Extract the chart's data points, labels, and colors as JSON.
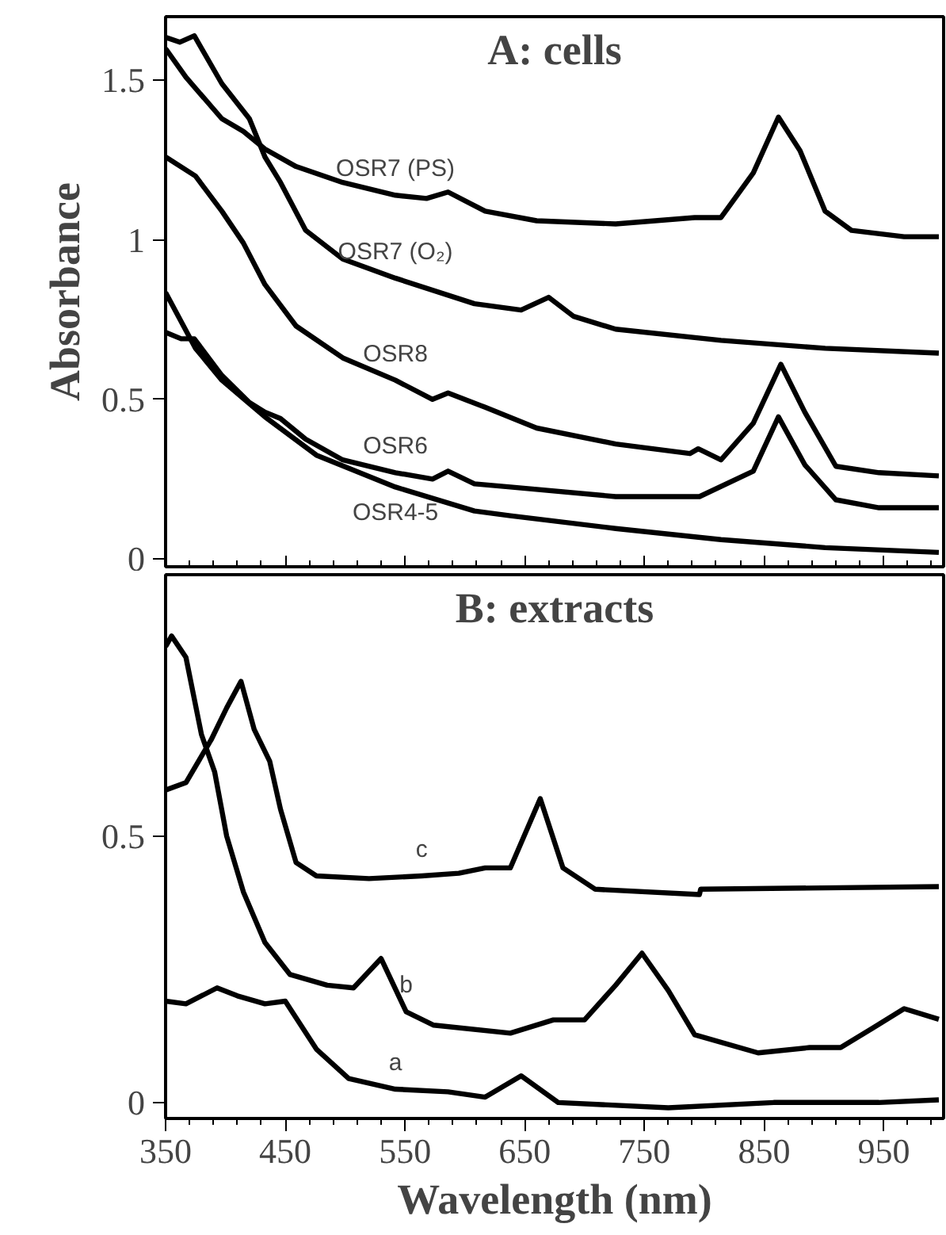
{
  "chart_data": [
    {
      "type": "line",
      "title": "A: cells",
      "ylabel": "Absorbance",
      "xlim": [
        350,
        1000
      ],
      "xticks": [
        350,
        450,
        550,
        650,
        750,
        850,
        950
      ],
      "ylim": [
        -0.025,
        1.7
      ],
      "yticks": [
        0,
        0.5,
        1,
        1.5
      ],
      "tick_labels": "y",
      "grid": false,
      "legend": false,
      "marker": "none",
      "line_style": "solid",
      "series": [
        {
          "name": "OSR7 (PS)",
          "color": "#000000",
          "x": [
            350,
            367,
            397,
            415,
            433,
            459,
            498,
            542,
            568,
            586,
            617,
            660,
            726,
            792,
            814,
            841,
            862,
            880,
            901,
            923,
            967,
            996
          ],
          "values": [
            1.6,
            1.51,
            1.38,
            1.34,
            1.285,
            1.23,
            1.18,
            1.14,
            1.13,
            1.15,
            1.09,
            1.06,
            1.05,
            1.07,
            1.07,
            1.21,
            1.385,
            1.28,
            1.09,
            1.03,
            1.01,
            1.01
          ]
        },
        {
          "name": "OSR7 (O₂)",
          "color": "#000000",
          "x": [
            350,
            362,
            374,
            397,
            420,
            433,
            446,
            467,
            498,
            542,
            608,
            647,
            670,
            691,
            726,
            814,
            901,
            996
          ],
          "values": [
            1.635,
            1.62,
            1.64,
            1.49,
            1.38,
            1.26,
            1.18,
            1.03,
            0.94,
            0.88,
            0.8,
            0.78,
            0.82,
            0.76,
            0.72,
            0.685,
            0.66,
            0.645
          ]
        },
        {
          "name": "OSR8",
          "color": "#000000",
          "x": [
            350,
            375,
            397,
            415,
            433,
            459,
            498,
            542,
            573,
            586,
            617,
            660,
            726,
            788,
            795,
            814,
            841,
            864,
            884,
            910,
            946,
            996
          ],
          "values": [
            1.26,
            1.2,
            1.09,
            0.99,
            0.86,
            0.73,
            0.63,
            0.56,
            0.5,
            0.52,
            0.475,
            0.41,
            0.36,
            0.33,
            0.345,
            0.31,
            0.425,
            0.61,
            0.46,
            0.29,
            0.27,
            0.26
          ]
        },
        {
          "name": "OSR6",
          "color": "#000000",
          "x": [
            350,
            363,
            374,
            397,
            420,
            433,
            446,
            467,
            498,
            542,
            573,
            586,
            608,
            638,
            726,
            796,
            841,
            862,
            884,
            910,
            946,
            996
          ],
          "values": [
            0.71,
            0.69,
            0.69,
            0.575,
            0.49,
            0.46,
            0.44,
            0.375,
            0.31,
            0.27,
            0.25,
            0.275,
            0.235,
            0.225,
            0.195,
            0.195,
            0.275,
            0.445,
            0.295,
            0.185,
            0.16,
            0.16
          ]
        },
        {
          "name": "OSR4-5",
          "color": "#000000",
          "x": [
            350,
            375,
            397,
            433,
            476,
            542,
            608,
            638,
            726,
            814,
            901,
            996
          ],
          "values": [
            0.835,
            0.66,
            0.56,
            0.445,
            0.325,
            0.225,
            0.15,
            0.135,
            0.095,
            0.06,
            0.035,
            0.02
          ]
        }
      ]
    },
    {
      "type": "line",
      "title": "B: extracts",
      "xlabel": "Wavelength (nm)",
      "xlim": [
        350,
        1000
      ],
      "xticks": [
        350,
        450,
        550,
        650,
        750,
        850,
        950
      ],
      "ylim": [
        -0.03,
        0.99
      ],
      "yticks": [
        0,
        0.5
      ],
      "grid": false,
      "legend": false,
      "marker": "none",
      "line_style": "solid",
      "series": [
        {
          "name": "c",
          "color": "#000000",
          "x": [
            350,
            367,
            388,
            401,
            413,
            424,
            437,
            446,
            459,
            476,
            520,
            564,
            595,
            617,
            638,
            663,
            682,
            709,
            796,
            797,
            996
          ],
          "values": [
            0.586,
            0.6,
            0.68,
            0.74,
            0.79,
            0.7,
            0.64,
            0.55,
            0.45,
            0.425,
            0.42,
            0.425,
            0.43,
            0.44,
            0.44,
            0.57,
            0.44,
            0.4,
            0.39,
            0.4,
            0.405
          ]
        },
        {
          "name": "b",
          "color": "#000000",
          "x": [
            350,
            355,
            367,
            380,
            391,
            401,
            415,
            433,
            454,
            485,
            507,
            530,
            551,
            574,
            638,
            674,
            700,
            726,
            748,
            770,
            792,
            845,
            888,
            914,
            941,
            967,
            996
          ],
          "values": [
            0.855,
            0.875,
            0.835,
            0.69,
            0.62,
            0.5,
            0.395,
            0.3,
            0.24,
            0.22,
            0.215,
            0.27,
            0.17,
            0.145,
            0.13,
            0.155,
            0.155,
            0.22,
            0.28,
            0.21,
            0.127,
            0.093,
            0.103,
            0.103,
            0.14,
            0.176,
            0.156
          ]
        },
        {
          "name": "a",
          "color": "#000000",
          "x": [
            350,
            367,
            393,
            410,
            433,
            450,
            476,
            503,
            542,
            586,
            617,
            647,
            678,
            770,
            858,
            946,
            996
          ],
          "values": [
            0.19,
            0.185,
            0.215,
            0.2,
            0.185,
            0.19,
            0.1,
            0.045,
            0.025,
            0.02,
            0.01,
            0.05,
            0.0,
            -0.01,
            0.0,
            0.0,
            0.005
          ]
        }
      ]
    }
  ]
}
